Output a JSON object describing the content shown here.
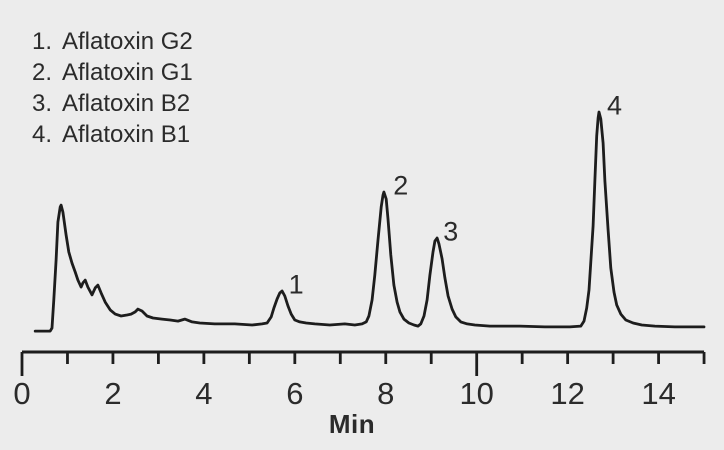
{
  "figure": {
    "background_color": "#ececec",
    "trace_color": "#1d1d1d",
    "text_color": "#2b2b2b"
  },
  "legend": {
    "items": [
      {
        "number": "1.",
        "name": "Aflatoxin G2"
      },
      {
        "number": "2.",
        "name": "Aflatoxin G1"
      },
      {
        "number": "3.",
        "name": "Aflatoxin B2"
      },
      {
        "number": "4.",
        "name": "Aflatoxin B1"
      }
    ]
  },
  "axis": {
    "label": "Min",
    "tick_label_values": [
      0,
      2,
      4,
      6,
      8,
      10,
      12,
      14
    ],
    "minor_tick_every": 1,
    "long_ticks_at": [
      0,
      10
    ],
    "range": [
      0,
      15
    ]
  },
  "chart_data": {
    "type": "line",
    "title": "",
    "xlabel": "Min",
    "ylabel": "",
    "xlim": [
      0,
      15
    ],
    "ylim": [
      0,
      100
    ],
    "grid": false,
    "legend_position": "top-left",
    "peaks": [
      {
        "label": "1",
        "name": "Aflatoxin G2",
        "retention_min": 5.7,
        "rel_height": 17.9
      },
      {
        "label": "2",
        "name": "Aflatoxin G1",
        "retention_min": 8.0,
        "rel_height": 63.3
      },
      {
        "label": "3",
        "name": "Aflatoxin B2",
        "retention_min": 9.1,
        "rel_height": 42.2
      },
      {
        "label": "4",
        "name": "Aflatoxin B1",
        "retention_min": 12.7,
        "rel_height": 100.0
      }
    ],
    "trace": [
      [
        0.29,
        -0.5
      ],
      [
        0.62,
        -0.5
      ],
      [
        0.66,
        0.9
      ],
      [
        0.7,
        13.8
      ],
      [
        0.75,
        32.1
      ],
      [
        0.79,
        49.5
      ],
      [
        0.84,
        56.4
      ],
      [
        0.86,
        57.3
      ],
      [
        0.9,
        54.1
      ],
      [
        0.97,
        43.6
      ],
      [
        1.03,
        35.8
      ],
      [
        1.1,
        30.7
      ],
      [
        1.17,
        26.6
      ],
      [
        1.23,
        22.9
      ],
      [
        1.3,
        19.7
      ],
      [
        1.34,
        21.6
      ],
      [
        1.39,
        22.9
      ],
      [
        1.45,
        19.7
      ],
      [
        1.54,
        16.1
      ],
      [
        1.61,
        19.3
      ],
      [
        1.67,
        20.6
      ],
      [
        1.74,
        17.0
      ],
      [
        1.83,
        12.8
      ],
      [
        1.94,
        9.2
      ],
      [
        2.05,
        7.3
      ],
      [
        2.18,
        6.4
      ],
      [
        2.31,
        6.9
      ],
      [
        2.4,
        7.3
      ],
      [
        2.49,
        8.3
      ],
      [
        2.55,
        9.6
      ],
      [
        2.64,
        8.7
      ],
      [
        2.75,
        6.4
      ],
      [
        2.88,
        5.5
      ],
      [
        3.08,
        5.0
      ],
      [
        3.26,
        4.6
      ],
      [
        3.43,
        4.1
      ],
      [
        3.58,
        5.0
      ],
      [
        3.74,
        3.7
      ],
      [
        3.91,
        3.2
      ],
      [
        4.24,
        2.8
      ],
      [
        4.68,
        2.8
      ],
      [
        5.06,
        2.3
      ],
      [
        5.28,
        2.8
      ],
      [
        5.39,
        3.2
      ],
      [
        5.48,
        6.0
      ],
      [
        5.54,
        10.1
      ],
      [
        5.61,
        14.2
      ],
      [
        5.67,
        17.0
      ],
      [
        5.72,
        17.9
      ],
      [
        5.78,
        15.6
      ],
      [
        5.85,
        11.0
      ],
      [
        5.92,
        7.3
      ],
      [
        6.0,
        4.6
      ],
      [
        6.11,
        3.7
      ],
      [
        6.25,
        3.2
      ],
      [
        6.44,
        2.8
      ],
      [
        6.77,
        2.3
      ],
      [
        7.1,
        2.8
      ],
      [
        7.32,
        2.3
      ],
      [
        7.48,
        2.8
      ],
      [
        7.57,
        3.7
      ],
      [
        7.63,
        6.4
      ],
      [
        7.7,
        13.8
      ],
      [
        7.76,
        25.2
      ],
      [
        7.83,
        41.3
      ],
      [
        7.9,
        56.4
      ],
      [
        7.94,
        61.9
      ],
      [
        7.96,
        63.3
      ],
      [
        8.01,
        60.1
      ],
      [
        8.05,
        50.9
      ],
      [
        8.11,
        34.4
      ],
      [
        8.18,
        20.6
      ],
      [
        8.25,
        12.8
      ],
      [
        8.31,
        8.3
      ],
      [
        8.4,
        5.0
      ],
      [
        8.51,
        3.2
      ],
      [
        8.62,
        2.3
      ],
      [
        8.71,
        1.8
      ],
      [
        8.77,
        2.8
      ],
      [
        8.84,
        6.4
      ],
      [
        8.91,
        13.8
      ],
      [
        8.97,
        25.2
      ],
      [
        9.04,
        35.8
      ],
      [
        9.08,
        40.8
      ],
      [
        9.13,
        42.2
      ],
      [
        9.17,
        39.4
      ],
      [
        9.24,
        32.6
      ],
      [
        9.3,
        23.9
      ],
      [
        9.37,
        15.6
      ],
      [
        9.46,
        9.6
      ],
      [
        9.54,
        6.0
      ],
      [
        9.65,
        3.7
      ],
      [
        9.79,
        2.8
      ],
      [
        9.96,
        2.3
      ],
      [
        10.29,
        1.8
      ],
      [
        10.95,
        1.8
      ],
      [
        11.5,
        1.4
      ],
      [
        12.05,
        1.4
      ],
      [
        12.29,
        1.8
      ],
      [
        12.36,
        4.1
      ],
      [
        12.42,
        10.1
      ],
      [
        12.47,
        18.3
      ],
      [
        12.51,
        31.2
      ],
      [
        12.56,
        47.7
      ],
      [
        12.6,
        68.8
      ],
      [
        12.64,
        89.0
      ],
      [
        12.67,
        97.2
      ],
      [
        12.69,
        100.0
      ],
      [
        12.73,
        96.8
      ],
      [
        12.78,
        85.8
      ],
      [
        12.82,
        68.3
      ],
      [
        12.89,
        45.9
      ],
      [
        12.95,
        28.4
      ],
      [
        13.02,
        17.4
      ],
      [
        13.08,
        11.5
      ],
      [
        13.17,
        7.3
      ],
      [
        13.28,
        4.6
      ],
      [
        13.44,
        3.2
      ],
      [
        13.63,
        2.3
      ],
      [
        13.92,
        1.8
      ],
      [
        14.36,
        1.4
      ],
      [
        15.0,
        1.4
      ]
    ]
  }
}
